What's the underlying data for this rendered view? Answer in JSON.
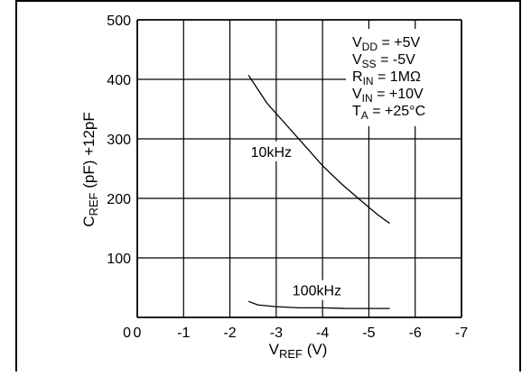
{
  "chart_data": {
    "type": "line",
    "x_ticks": [
      0,
      -1,
      -2,
      -3,
      -4,
      -5,
      -6,
      -7
    ],
    "y_ticks": [
      0,
      100,
      200,
      300,
      400,
      500
    ],
    "xlim": [
      0,
      -7
    ],
    "ylim": [
      0,
      500
    ],
    "grid": true,
    "xlabel": {
      "main": "V",
      "sub": "REF",
      "suffix": " (V)"
    },
    "ylabel": {
      "main": "C",
      "sub": "REF",
      "suffix": " (pF) +12pF"
    },
    "series": [
      {
        "name": "10kHz",
        "x": [
          -2.4,
          -2.8,
          -3.2,
          -3.6,
          -4.0,
          -4.4,
          -4.8,
          -5.2,
          -5.45
        ],
        "y": [
          407,
          360,
          325,
          290,
          255,
          225,
          198,
          172,
          158
        ]
      },
      {
        "name": "100kHz",
        "x": [
          -2.4,
          -2.6,
          -3.0,
          -3.5,
          -4.0,
          -4.5,
          -5.0,
          -5.45
        ],
        "y": [
          27,
          21,
          18,
          16,
          16,
          15,
          15,
          15
        ]
      }
    ],
    "conditions": [
      {
        "main": "V",
        "sub": "DD",
        "rest": " = +5V"
      },
      {
        "main": "V",
        "sub": "SS",
        "rest": " = -5V"
      },
      {
        "main": "R",
        "sub": "IN",
        "rest": " = 1MΩ"
      },
      {
        "main": "V",
        "sub": "IN",
        "rest": " = +10V"
      },
      {
        "main": "T",
        "sub": "A",
        "rest": " = +25°C"
      }
    ]
  }
}
